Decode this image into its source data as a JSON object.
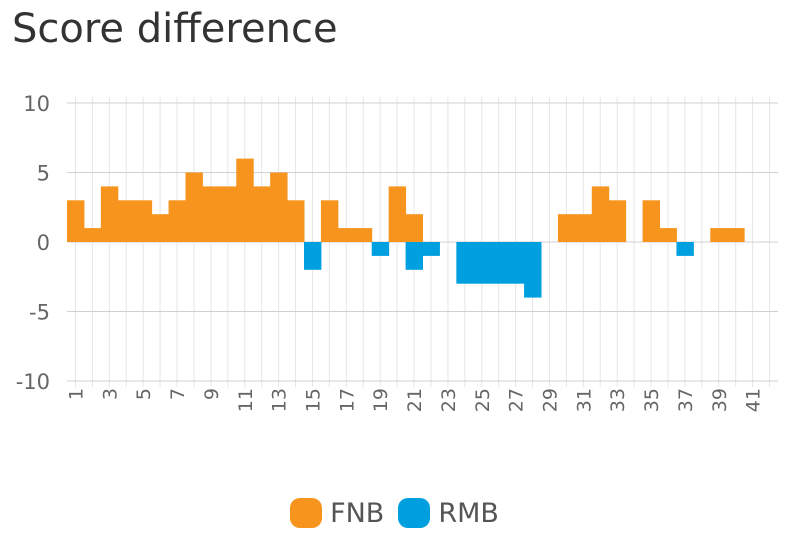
{
  "chart_data": {
    "type": "bar",
    "title": "Score difference",
    "xlabel": "",
    "ylabel": "",
    "ylim": [
      -10,
      10
    ],
    "yticks": [
      10,
      5,
      0,
      -5,
      -10
    ],
    "categories": [
      1,
      2,
      3,
      4,
      5,
      6,
      7,
      8,
      9,
      10,
      11,
      12,
      13,
      14,
      15,
      16,
      17,
      18,
      19,
      20,
      21,
      22,
      23,
      24,
      25,
      26,
      27,
      28,
      29,
      30,
      31,
      32,
      33,
      34,
      35,
      36,
      37,
      38,
      39,
      40,
      41,
      42
    ],
    "x_tick_labels": [
      "1",
      "3",
      "5",
      "7",
      "9",
      "11",
      "13",
      "15",
      "17",
      "19",
      "21",
      "23",
      "25",
      "27",
      "29",
      "31",
      "33",
      "35",
      "37",
      "39",
      "41"
    ],
    "series": [
      {
        "name": "FNB",
        "color": "#F7941D",
        "values": [
          3,
          1,
          4,
          3,
          3,
          2,
          3,
          5,
          4,
          4,
          6,
          4,
          5,
          3,
          0,
          3,
          1,
          1,
          0,
          4,
          2,
          0,
          0,
          0,
          0,
          0,
          0,
          0,
          0,
          2,
          2,
          4,
          3,
          0,
          3,
          1,
          0,
          0,
          1,
          1,
          0,
          0
        ]
      },
      {
        "name": "RMB",
        "color": "#009FDF",
        "values": [
          0,
          0,
          0,
          0,
          0,
          0,
          0,
          0,
          0,
          0,
          0,
          0,
          0,
          0,
          -2,
          0,
          0,
          0,
          -1,
          0,
          -2,
          -1,
          0,
          -3,
          -3,
          -3,
          -3,
          -4,
          0,
          0,
          0,
          0,
          0,
          0,
          0,
          0,
          -1,
          0,
          0,
          0,
          0,
          0
        ]
      }
    ],
    "grid": true,
    "legend_position": "bottom"
  }
}
